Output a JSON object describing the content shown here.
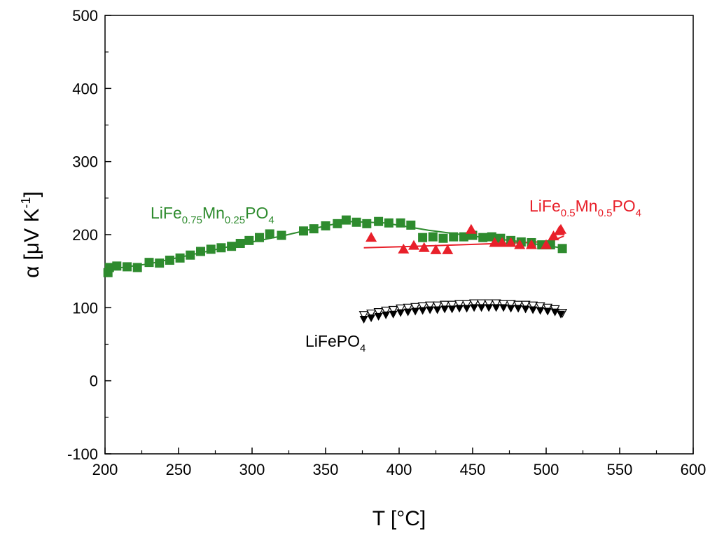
{
  "chart_data": {
    "type": "scatter",
    "title": "",
    "xlabel": "T [°C]",
    "ylabel": "α [μV K⁻¹]",
    "ylabel_symbol": "α",
    "ylabel_unit": "[μV K",
    "ylabel_exp": "-1",
    "ylabel_close": "]",
    "xlim": [
      200,
      600
    ],
    "ylim": [
      -100,
      500
    ],
    "x_ticks": [
      200,
      250,
      300,
      350,
      400,
      450,
      500,
      550,
      600
    ],
    "y_ticks": [
      -100,
      0,
      100,
      200,
      300,
      400,
      500
    ],
    "grid": false,
    "legend": "inline labels",
    "series": [
      {
        "name": "LiFe0.75Mn0.25PO4",
        "label_parts": [
          "LiFe",
          "0.75",
          "Mn",
          "0.25",
          "PO",
          "4"
        ],
        "color": "#2e8b2e",
        "marker": "square",
        "points": [
          [
            202,
            148
          ],
          [
            203,
            155
          ],
          [
            208,
            157
          ],
          [
            215,
            156
          ],
          [
            222,
            155
          ],
          [
            230,
            162
          ],
          [
            237,
            161
          ],
          [
            244,
            165
          ],
          [
            251,
            168
          ],
          [
            258,
            172
          ],
          [
            265,
            177
          ],
          [
            272,
            180
          ],
          [
            279,
            182
          ],
          [
            286,
            184
          ],
          [
            292,
            188
          ],
          [
            298,
            192
          ],
          [
            305,
            196
          ],
          [
            312,
            201
          ],
          [
            320,
            199
          ],
          [
            335,
            205
          ],
          [
            342,
            208
          ],
          [
            350,
            212
          ],
          [
            358,
            215
          ],
          [
            364,
            220
          ],
          [
            371,
            217
          ],
          [
            378,
            215
          ],
          [
            386,
            218
          ],
          [
            393,
            216
          ],
          [
            401,
            216
          ],
          [
            408,
            213
          ],
          [
            416,
            196
          ],
          [
            423,
            197
          ],
          [
            430,
            195
          ],
          [
            437,
            197
          ],
          [
            444,
            197
          ],
          [
            450,
            199
          ],
          [
            457,
            196
          ],
          [
            463,
            197
          ],
          [
            469,
            195
          ],
          [
            476,
            192
          ],
          [
            483,
            190
          ],
          [
            490,
            189
          ],
          [
            497,
            186
          ],
          [
            503,
            186
          ],
          [
            511,
            181
          ]
        ],
        "fit_line": [
          [
            200,
            152
          ],
          [
            230,
            160
          ],
          [
            260,
            173
          ],
          [
            290,
            186
          ],
          [
            320,
            198
          ],
          [
            350,
            212
          ],
          [
            365,
            218
          ],
          [
            390,
            216
          ],
          [
            420,
            206
          ],
          [
            450,
            198
          ],
          [
            480,
            191
          ],
          [
            510,
            182
          ]
        ]
      },
      {
        "name": "LiFe0.5Mn0.5PO4",
        "label_parts": [
          "LiFe",
          "0.5",
          "Mn",
          "0.5",
          "PO",
          "4"
        ],
        "color": "#e8202a",
        "marker": "triangle",
        "points": [
          [
            381,
            196
          ],
          [
            403,
            180
          ],
          [
            410,
            185
          ],
          [
            417,
            182
          ],
          [
            425,
            179
          ],
          [
            433,
            179
          ],
          [
            449,
            207
          ],
          [
            465,
            189
          ],
          [
            470,
            189
          ],
          [
            476,
            189
          ],
          [
            482,
            186
          ],
          [
            490,
            186
          ],
          [
            500,
            186
          ],
          [
            505,
            198
          ],
          [
            509,
            205
          ],
          [
            510,
            207
          ]
        ],
        "fit_line": [
          [
            376,
            182
          ],
          [
            410,
            184
          ],
          [
            440,
            186
          ],
          [
            470,
            188
          ],
          [
            495,
            190
          ],
          [
            505,
            192
          ],
          [
            512,
            198
          ]
        ]
      },
      {
        "name": "LiFePO4",
        "label_parts": [
          "LiFePO",
          "4"
        ],
        "color": "#000000",
        "marker": "triangle-down",
        "points": [
          [
            376,
            84
          ],
          [
            381,
            86
          ],
          [
            386,
            88
          ],
          [
            391,
            90
          ],
          [
            396,
            91
          ],
          [
            401,
            93
          ],
          [
            406,
            94
          ],
          [
            411,
            95
          ],
          [
            416,
            96
          ],
          [
            421,
            97
          ],
          [
            426,
            97
          ],
          [
            431,
            98
          ],
          [
            436,
            98
          ],
          [
            441,
            99
          ],
          [
            446,
            99
          ],
          [
            451,
            100
          ],
          [
            456,
            100
          ],
          [
            461,
            100
          ],
          [
            466,
            100
          ],
          [
            471,
            100
          ],
          [
            476,
            99
          ],
          [
            481,
            99
          ],
          [
            486,
            98
          ],
          [
            491,
            97
          ],
          [
            496,
            96
          ],
          [
            501,
            95
          ],
          [
            506,
            94
          ],
          [
            510,
            91
          ]
        ],
        "points_open": [
          [
            376,
            90
          ],
          [
            381,
            92
          ],
          [
            386,
            94
          ],
          [
            391,
            96
          ],
          [
            396,
            97
          ],
          [
            401,
            99
          ],
          [
            406,
            100
          ],
          [
            411,
            101
          ],
          [
            416,
            102
          ],
          [
            421,
            103
          ],
          [
            426,
            103
          ],
          [
            431,
            104
          ],
          [
            436,
            104
          ],
          [
            441,
            105
          ],
          [
            446,
            105
          ],
          [
            451,
            106
          ],
          [
            456,
            106
          ],
          [
            461,
            106
          ],
          [
            466,
            106
          ],
          [
            471,
            105
          ],
          [
            476,
            105
          ],
          [
            481,
            104
          ],
          [
            486,
            104
          ],
          [
            491,
            103
          ],
          [
            496,
            102
          ],
          [
            501,
            100
          ],
          [
            506,
            98
          ],
          [
            511,
            93
          ]
        ]
      }
    ]
  }
}
